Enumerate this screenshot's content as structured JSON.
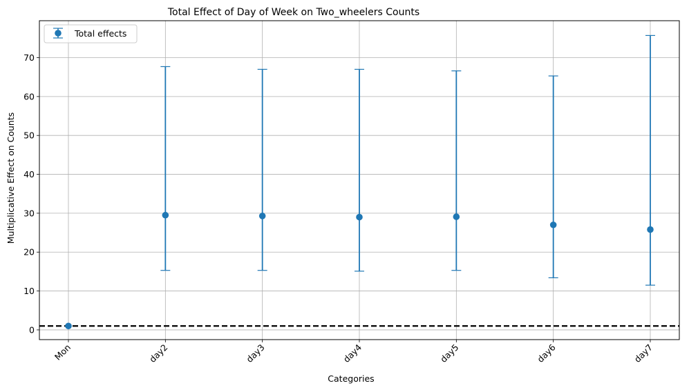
{
  "chart_data": {
    "type": "scatter",
    "title": "Total Effect of Day of Week on Two_wheelers Counts",
    "xlabel": "Categories",
    "ylabel": "Multiplicative Effect on Counts",
    "categories": [
      "Mon",
      "day2",
      "day3",
      "day4",
      "day5",
      "day6",
      "day7"
    ],
    "series": [
      {
        "name": "Total effects",
        "values": [
          1.0,
          29.5,
          29.3,
          29.0,
          29.1,
          27.0,
          25.8
        ],
        "lower": [
          1.0,
          15.3,
          15.3,
          15.1,
          15.3,
          13.4,
          11.5
        ],
        "upper": [
          1.0,
          67.7,
          67.0,
          67.0,
          66.6,
          65.3,
          75.7
        ],
        "color": "#1f77b4"
      }
    ],
    "reference_line": {
      "y": 1,
      "style": "dashed",
      "color": "#000000"
    },
    "ylim": [
      -2.5,
      79.5
    ],
    "yticks": [
      0,
      10,
      20,
      30,
      40,
      50,
      60,
      70
    ],
    "grid": true,
    "legend_position": "top-left",
    "xtick_rotation": 45
  }
}
